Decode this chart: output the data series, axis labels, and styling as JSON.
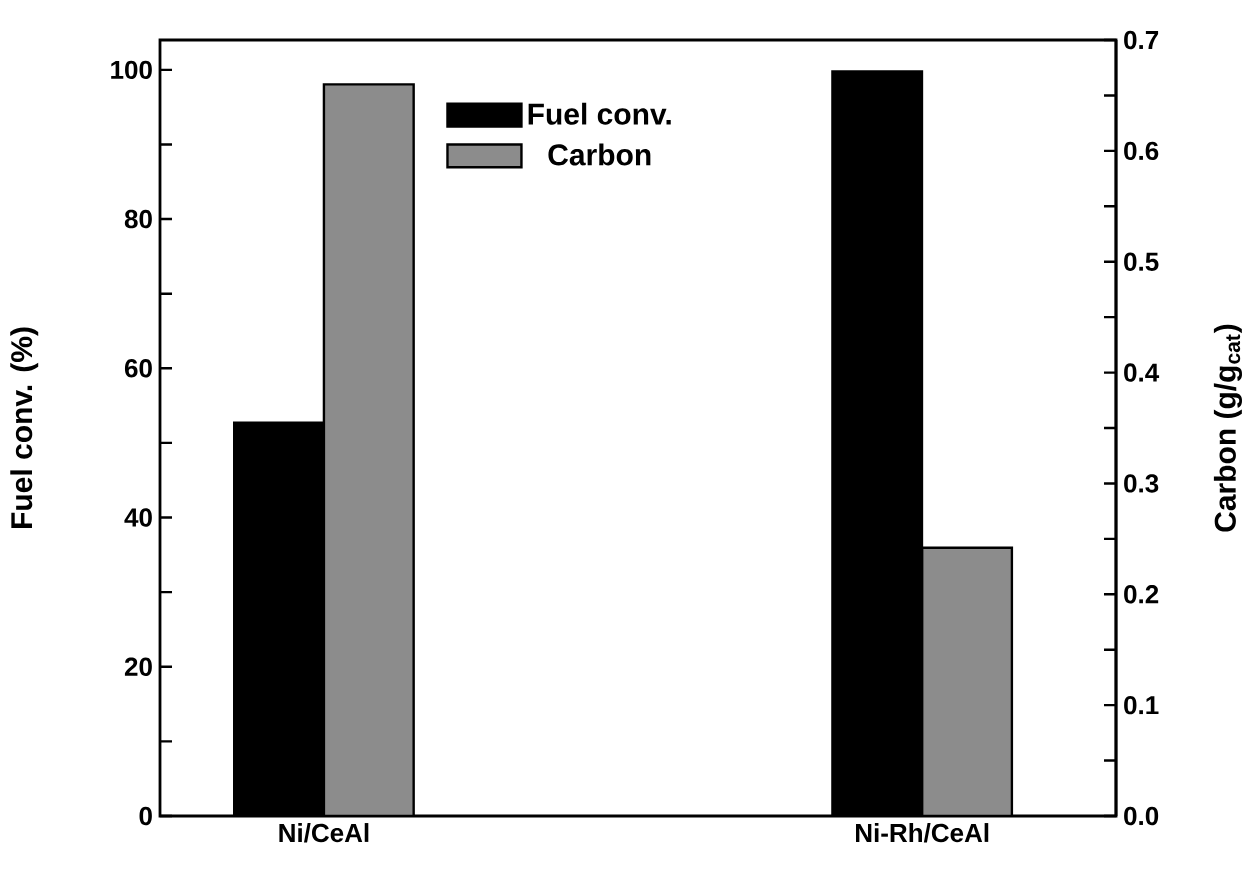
{
  "chart_data": {
    "type": "bar",
    "ylabel": "Fuel conv. (%)",
    "y2label": "Carbon (g/g$_{cat}$)",
    "categories": [
      "Ni/CeAl",
      "Ni-Rh/CeAl"
    ],
    "series": [
      {
        "name": "Fuel conv.",
        "color": "#000000",
        "values": [
          52.7,
          99.8
        ]
      },
      {
        "name": "Carbon",
        "color": "#8c8c8c",
        "axis": "y2",
        "values": [
          0.66,
          0.242
        ]
      }
    ],
    "ylim": [
      0,
      104
    ],
    "yticks": [
      0,
      {
        "value": 10,
        "label": null
      },
      20,
      {
        "value": 30,
        "label": null
      },
      40,
      {
        "value": 50,
        "label": null
      },
      60,
      {
        "value": 70,
        "label": null
      },
      80,
      {
        "value": 90,
        "label": null
      },
      100
    ],
    "y2lim": [
      0,
      0.7
    ],
    "y2ticks": [
      {
        "value": 0,
        "label": "0.0"
      },
      {
        "value": 0.05,
        "label": null
      },
      0.1,
      {
        "value": 0.15,
        "label": null
      },
      0.2,
      {
        "value": 0.25,
        "label": null
      },
      0.3,
      {
        "value": 0.35,
        "label": null
      },
      0.4,
      {
        "value": 0.45,
        "label": null
      },
      0.5,
      {
        "value": 0.55,
        "label": null
      },
      0.6,
      {
        "value": 0.65,
        "label": null
      },
      0.7
    ],
    "legend": "top"
  }
}
